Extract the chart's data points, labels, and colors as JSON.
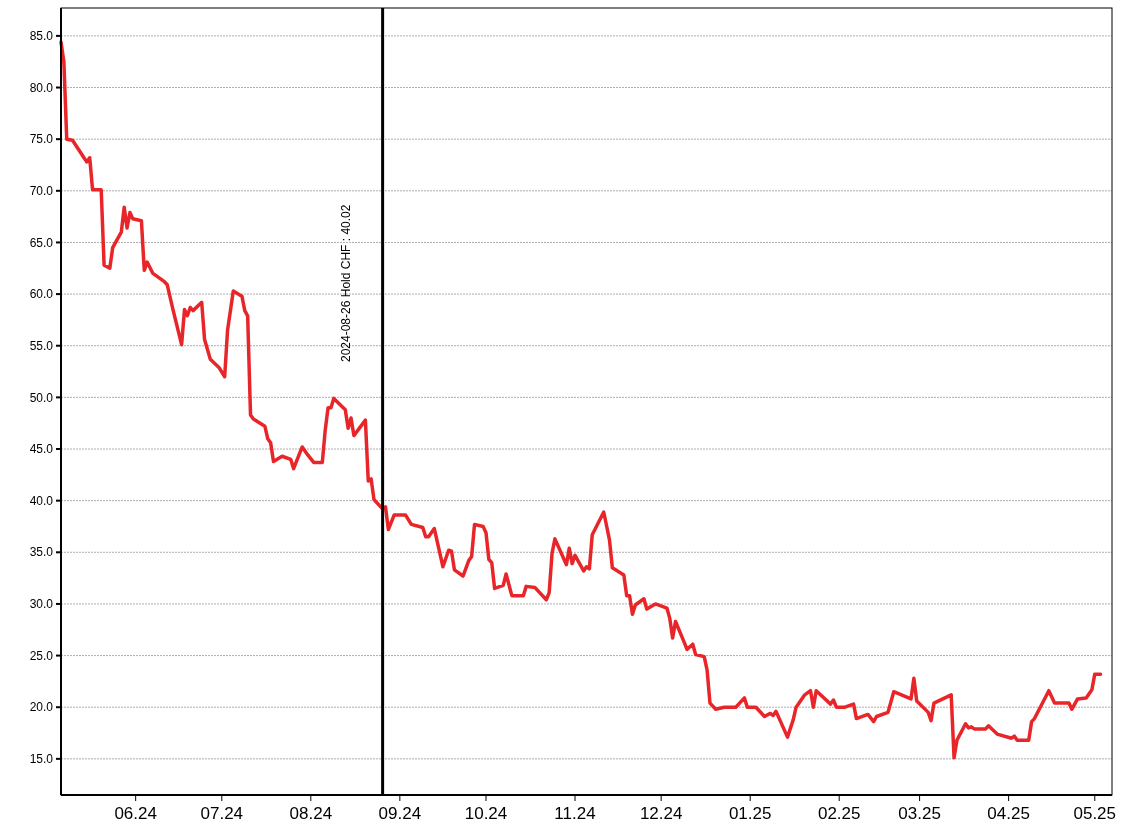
{
  "chart_data": {
    "type": "line",
    "x": [
      "2024-05-06",
      "2024-05-07",
      "2024-05-08",
      "2024-05-10",
      "2024-05-14",
      "2024-05-15",
      "2024-05-16",
      "2024-05-17",
      "2024-05-20",
      "2024-05-21",
      "2024-05-23",
      "2024-05-24",
      "2024-05-27",
      "2024-05-28",
      "2024-05-29",
      "2024-05-30",
      "2024-05-31",
      "2024-06-03",
      "2024-06-04",
      "2024-06-05",
      "2024-06-07",
      "2024-06-11",
      "2024-06-12",
      "2024-06-14",
      "2024-06-17",
      "2024-06-18",
      "2024-06-19",
      "2024-06-20",
      "2024-06-21",
      "2024-06-24",
      "2024-06-25",
      "2024-06-27",
      "2024-06-30",
      "2024-07-02",
      "2024-07-03",
      "2024-07-05",
      "2024-07-08",
      "2024-07-09",
      "2024-07-10",
      "2024-07-11",
      "2024-07-12",
      "2024-07-16",
      "2024-07-17",
      "2024-07-18",
      "2024-07-19",
      "2024-07-22",
      "2024-07-25",
      "2024-07-26",
      "2024-07-29",
      "2024-07-31",
      "2024-08-02",
      "2024-08-05",
      "2024-08-06",
      "2024-08-07",
      "2024-08-08",
      "2024-08-09",
      "2024-08-13",
      "2024-08-14",
      "2024-08-15",
      "2024-08-16",
      "2024-08-20",
      "2024-08-21",
      "2024-08-22",
      "2024-08-23",
      "2024-08-26",
      "2024-08-27",
      "2024-08-28",
      "2024-08-30",
      "2024-09-03",
      "2024-09-05",
      "2024-09-09",
      "2024-09-10",
      "2024-09-11",
      "2024-09-13",
      "2024-09-16",
      "2024-09-18",
      "2024-09-19",
      "2024-09-20",
      "2024-09-23",
      "2024-09-25",
      "2024-09-26",
      "2024-09-27",
      "2024-09-30",
      "2024-10-01",
      "2024-10-02",
      "2024-10-03",
      "2024-10-04",
      "2024-10-07",
      "2024-10-08",
      "2024-10-10",
      "2024-10-14",
      "2024-10-15",
      "2024-10-18",
      "2024-10-22",
      "2024-10-23",
      "2024-10-24",
      "2024-10-25",
      "2024-10-29",
      "2024-10-30",
      "2024-10-31",
      "2024-11-01",
      "2024-11-04",
      "2024-11-05",
      "2024-11-06",
      "2024-11-07",
      "2024-11-11",
      "2024-11-13",
      "2024-11-14",
      "2024-11-18",
      "2024-11-19",
      "2024-11-20",
      "2024-11-21",
      "2024-11-22",
      "2024-11-25",
      "2024-11-26",
      "2024-11-29",
      "2024-12-03",
      "2024-12-04",
      "2024-12-05",
      "2024-12-06",
      "2024-12-09",
      "2024-12-10",
      "2024-12-12",
      "2024-12-13",
      "2024-12-16",
      "2024-12-17",
      "2024-12-18",
      "2024-12-20",
      "2024-12-23",
      "2024-12-27",
      "2024-12-30",
      "2024-12-31",
      "2025-01-03",
      "2025-01-06",
      "2025-01-08",
      "2025-01-09",
      "2025-01-10",
      "2025-01-14",
      "2025-01-16",
      "2025-01-17",
      "2025-01-20",
      "2025-01-22",
      "2025-01-23",
      "2025-01-24",
      "2025-01-29",
      "2025-01-30",
      "2025-01-31",
      "2025-02-03",
      "2025-02-05",
      "2025-02-06",
      "2025-02-07",
      "2025-02-11",
      "2025-02-13",
      "2025-02-14",
      "2025-02-18",
      "2025-02-20",
      "2025-02-26",
      "2025-02-27",
      "2025-02-28",
      "2025-03-04",
      "2025-03-05",
      "2025-03-06",
      "2025-03-12",
      "2025-03-13",
      "2025-03-14",
      "2025-03-17",
      "2025-03-18",
      "2025-03-19",
      "2025-03-20",
      "2025-03-24",
      "2025-03-25",
      "2025-03-28",
      "2025-04-02",
      "2025-04-03",
      "2025-04-04",
      "2025-04-08",
      "2025-04-09",
      "2025-04-10",
      "2025-04-15",
      "2025-04-17",
      "2025-04-22",
      "2025-04-23",
      "2025-04-25",
      "2025-04-28",
      "2025-04-30",
      "2025-05-01",
      "2025-05-03"
    ],
    "series": [
      {
        "color": "#e8262a",
        "values": [
          84.4,
          82.5,
          75.0,
          74.9,
          73.2,
          72.8,
          73.2,
          70.1,
          70.1,
          62.8,
          62.5,
          64.5,
          66.0,
          68.4,
          66.4,
          67.9,
          67.3,
          67.1,
          62.3,
          63.1,
          62.0,
          61.2,
          60.9,
          58.5,
          55.1,
          58.5,
          57.9,
          58.7,
          58.4,
          59.2,
          55.6,
          53.7,
          52.9,
          52.0,
          56.5,
          60.3,
          59.8,
          58.4,
          57.9,
          48.3,
          47.9,
          47.2,
          46.0,
          45.6,
          43.8,
          44.3,
          44.0,
          43.1,
          45.2,
          44.4,
          43.7,
          43.7,
          46.8,
          49.0,
          49.0,
          49.9,
          48.8,
          47.0,
          48.0,
          46.3,
          47.8,
          41.9,
          42.1,
          40.1,
          39.2,
          39.4,
          37.2,
          38.6,
          38.6,
          37.7,
          37.4,
          36.5,
          36.5,
          37.3,
          33.6,
          35.2,
          35.1,
          33.3,
          32.7,
          34.2,
          34.6,
          37.7,
          37.5,
          36.9,
          34.3,
          34.0,
          31.5,
          31.8,
          32.9,
          30.8,
          30.8,
          31.7,
          31.6,
          30.4,
          31.1,
          34.9,
          36.3,
          33.8,
          35.4,
          33.9,
          34.7,
          33.2,
          33.6,
          33.4,
          36.7,
          38.9,
          36.2,
          33.5,
          32.8,
          30.8,
          30.8,
          29.0,
          29.9,
          30.5,
          29.5,
          30.0,
          29.6,
          28.6,
          26.7,
          28.3,
          26.3,
          25.6,
          26.1,
          25.1,
          24.9,
          23.6,
          20.4,
          19.8,
          20.0,
          20.0,
          20.9,
          20.0,
          20.0,
          19.1,
          19.4,
          19.2,
          19.6,
          17.1,
          18.8,
          20.0,
          21.2,
          21.6,
          20.0,
          21.6,
          20.3,
          20.7,
          20.0,
          20.0,
          20.2,
          20.3,
          18.9,
          19.3,
          18.6,
          19.1,
          19.5,
          21.5,
          20.8,
          22.8,
          20.6,
          19.5,
          18.7,
          20.4,
          21.2,
          15.1,
          16.8,
          18.4,
          18.0,
          18.1,
          17.9,
          17.9,
          18.2,
          17.4,
          17.0,
          17.2,
          16.8,
          16.8,
          18.6,
          18.9,
          21.6,
          20.4,
          20.4,
          19.8,
          20.8,
          20.9,
          21.7,
          23.2,
          23.2
        ]
      }
    ],
    "xlim": [
      "2024-05-06",
      "2025-05-07"
    ],
    "xticks": [
      {
        "value": "2024-06-01",
        "label": "06.24"
      },
      {
        "value": "2024-07-01",
        "label": "07.24"
      },
      {
        "value": "2024-08-01",
        "label": "08.24"
      },
      {
        "value": "2024-09-01",
        "label": "09.24"
      },
      {
        "value": "2024-10-01",
        "label": "10.24"
      },
      {
        "value": "2024-11-01",
        "label": "11.24"
      },
      {
        "value": "2024-12-01",
        "label": "12.24"
      },
      {
        "value": "2025-01-01",
        "label": "01.25"
      },
      {
        "value": "2025-02-01",
        "label": "02.25"
      },
      {
        "value": "2025-03-01",
        "label": "03.25"
      },
      {
        "value": "2025-04-01",
        "label": "04.25"
      },
      {
        "value": "2025-05-01",
        "label": "05.25"
      }
    ],
    "ylim": [
      11.5,
      87.7
    ],
    "yticks": [
      {
        "value": 15,
        "label": "15.0"
      },
      {
        "value": 20,
        "label": "20.0"
      },
      {
        "value": 25,
        "label": "25.0"
      },
      {
        "value": 30,
        "label": "30.0"
      },
      {
        "value": 35,
        "label": "35.0"
      },
      {
        "value": 40,
        "label": "40.0"
      },
      {
        "value": 45,
        "label": "45.0"
      },
      {
        "value": 50,
        "label": "50.0"
      },
      {
        "value": 55,
        "label": "55.0"
      },
      {
        "value": 60,
        "label": "60.0"
      },
      {
        "value": 65,
        "label": "65.0"
      },
      {
        "value": 70,
        "label": "70.0"
      },
      {
        "value": 75,
        "label": "75.0"
      },
      {
        "value": 80,
        "label": "80.0"
      },
      {
        "value": 85,
        "label": "85.0"
      }
    ],
    "grid": "y",
    "marker": "none",
    "line_style": "solid",
    "ref_lines": [
      {
        "axis": "x",
        "value": "2024-08-26",
        "label": "2024-08-26 Hold CHF : 40.02",
        "color": "#000000"
      }
    ]
  }
}
